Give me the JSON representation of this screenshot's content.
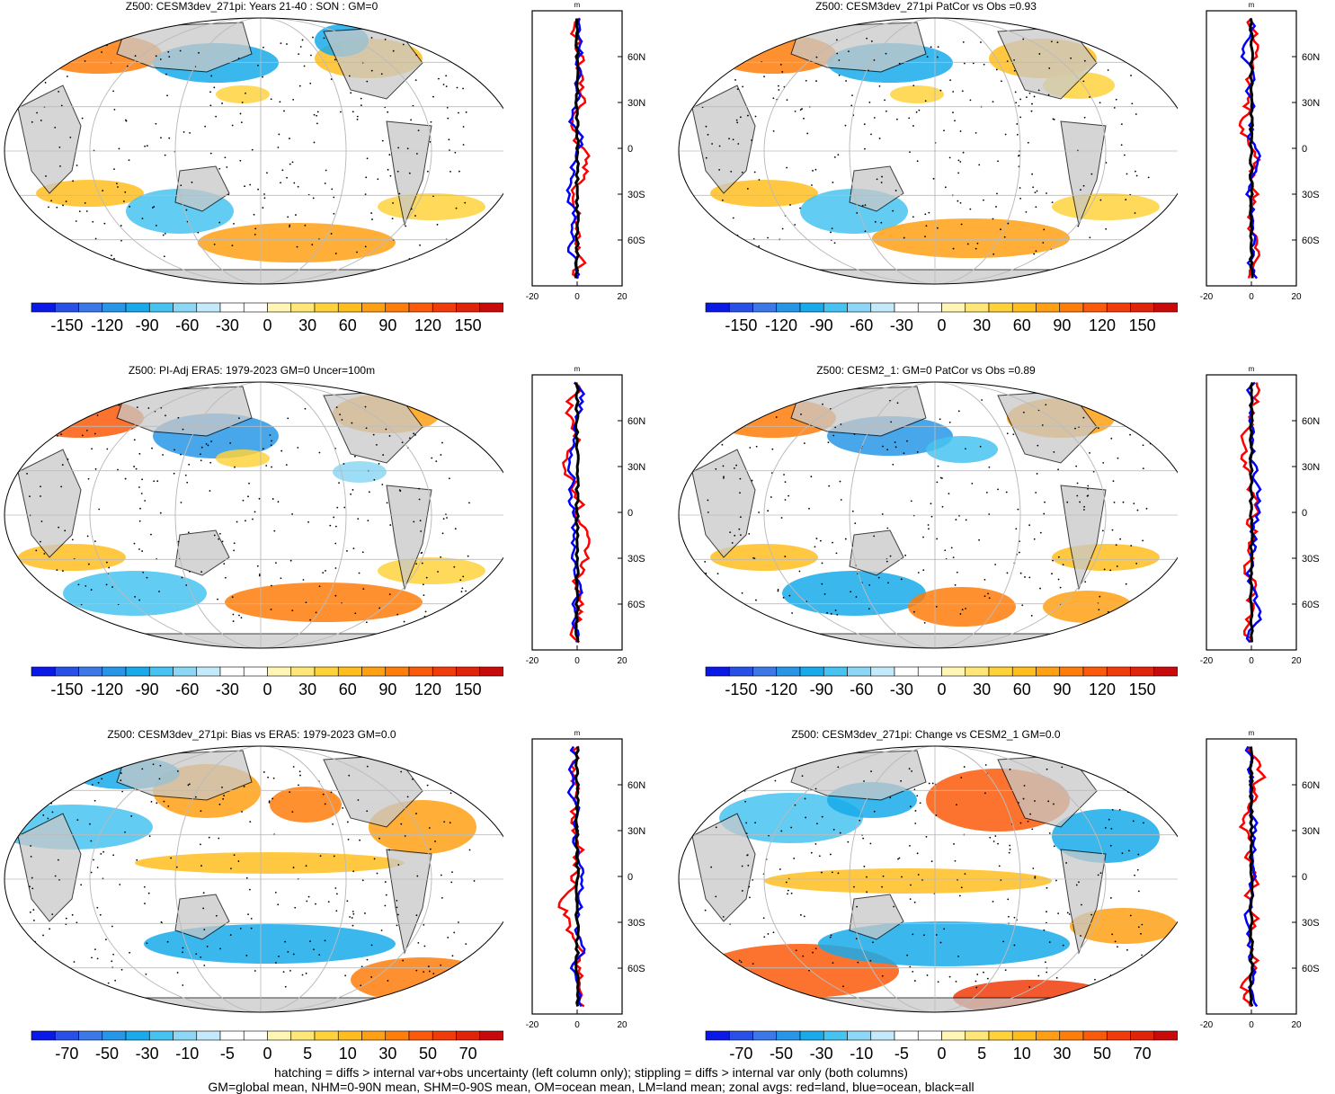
{
  "chart_data": [
    {
      "type": "heatmap",
      "title": "Z500: CESM3dev_271pi: Years 21-40 : SON : GM=0",
      "colorbar": {
        "ticks": [
          "-150",
          "-120",
          "-90",
          "-60",
          "-30",
          "0",
          "30",
          "60",
          "90",
          "120",
          "150"
        ]
      },
      "profile": {
        "unit": "m",
        "xlim": [
          -20,
          20
        ],
        "x_ticks": [
          "-20",
          "0",
          "20"
        ],
        "lat_labels": [
          "60N",
          "30N",
          "0",
          "30S",
          "60S"
        ],
        "series": [
          {
            "name": "land",
            "color": "#ff0000"
          },
          {
            "name": "ocean",
            "color": "#0000ff"
          },
          {
            "name": "all",
            "color": "#000000"
          }
        ]
      }
    },
    {
      "type": "heatmap",
      "title": "Z500: CESM3dev_271pi PatCor vs Obs =0.93",
      "colorbar": {
        "ticks": [
          "-150",
          "-120",
          "-90",
          "-60",
          "-30",
          "0",
          "30",
          "60",
          "90",
          "120",
          "150"
        ]
      },
      "profile": {
        "unit": "m",
        "xlim": [
          -20,
          20
        ],
        "x_ticks": [
          "-20",
          "0",
          "20"
        ],
        "lat_labels": [
          "60N",
          "30N",
          "0",
          "30S",
          "60S"
        ],
        "series": [
          {
            "name": "land",
            "color": "#ff0000"
          },
          {
            "name": "ocean",
            "color": "#0000ff"
          },
          {
            "name": "all",
            "color": "#000000"
          }
        ]
      }
    },
    {
      "type": "heatmap",
      "title": "Z500: PI-Adj ERA5: 1979-2023 GM=0 Uncer=100m",
      "colorbar": {
        "ticks": [
          "-150",
          "-120",
          "-90",
          "-60",
          "-30",
          "0",
          "30",
          "60",
          "90",
          "120",
          "150"
        ]
      },
      "profile": {
        "unit": "m",
        "xlim": [
          -20,
          20
        ],
        "x_ticks": [
          "-20",
          "0",
          "20"
        ],
        "lat_labels": [
          "60N",
          "30N",
          "0",
          "30S",
          "60S"
        ],
        "series": [
          {
            "name": "land",
            "color": "#ff0000"
          },
          {
            "name": "ocean",
            "color": "#0000ff"
          },
          {
            "name": "all",
            "color": "#000000"
          }
        ]
      }
    },
    {
      "type": "heatmap",
      "title": "Z500: CESM2_1: GM=0 PatCor vs Obs =0.89",
      "colorbar": {
        "ticks": [
          "-150",
          "-120",
          "-90",
          "-60",
          "-30",
          "0",
          "30",
          "60",
          "90",
          "120",
          "150"
        ]
      },
      "profile": {
        "unit": "m",
        "xlim": [
          -20,
          20
        ],
        "x_ticks": [
          "-20",
          "0",
          "20"
        ],
        "lat_labels": [
          "60N",
          "30N",
          "0",
          "30S",
          "60S"
        ],
        "series": [
          {
            "name": "land",
            "color": "#ff0000"
          },
          {
            "name": "ocean",
            "color": "#0000ff"
          },
          {
            "name": "all",
            "color": "#000000"
          }
        ]
      }
    },
    {
      "type": "heatmap",
      "title": "Z500: CESM3dev_271pi: Bias vs ERA5: 1979-2023  GM=0.0",
      "colorbar": {
        "ticks": [
          "-70",
          "-50",
          "-30",
          "-10",
          "-5",
          "0",
          "5",
          "10",
          "30",
          "50",
          "70"
        ]
      },
      "profile": {
        "unit": "m",
        "xlim": [
          -20,
          20
        ],
        "x_ticks": [
          "-20",
          "0",
          "20"
        ],
        "lat_labels": [
          "60N",
          "30N",
          "0",
          "30S",
          "60S"
        ],
        "series": [
          {
            "name": "land",
            "color": "#ff0000"
          },
          {
            "name": "ocean",
            "color": "#0000ff"
          },
          {
            "name": "all",
            "color": "#000000"
          }
        ]
      }
    },
    {
      "type": "heatmap",
      "title": "Z500: CESM3dev_271pi: Change vs CESM2_1 GM=0.0",
      "colorbar": {
        "ticks": [
          "-70",
          "-50",
          "-30",
          "-10",
          "-5",
          "0",
          "5",
          "10",
          "30",
          "50",
          "70"
        ]
      },
      "profile": {
        "unit": "m",
        "xlim": [
          -20,
          20
        ],
        "x_ticks": [
          "-20",
          "0",
          "20"
        ],
        "lat_labels": [
          "60N",
          "30N",
          "0",
          "30S",
          "60S"
        ],
        "series": [
          {
            "name": "land",
            "color": "#ff0000"
          },
          {
            "name": "ocean",
            "color": "#0000ff"
          },
          {
            "name": "all",
            "color": "#000000"
          }
        ]
      }
    }
  ],
  "colorbar_colors": [
    "#0a18e8",
    "#2850e6",
    "#3c78e8",
    "#2896e6",
    "#18aaea",
    "#46c3f0",
    "#8cd7f5",
    "#c3e9fb",
    "#ffffff",
    "#ffffff",
    "#fff5b4",
    "#ffe678",
    "#ffd23c",
    "#ffbe1e",
    "#ffa014",
    "#ff7d0a",
    "#fa5a0a",
    "#f03c0a",
    "#e1230a",
    "#c80a0a"
  ],
  "map_colors": {
    "ocean": "#ffffff",
    "land": "#c8c8c8",
    "coast": "#000000",
    "grid": "#bbbbbb"
  },
  "footnote": {
    "line1": "hatching = diffs > internal var+obs uncertainty (left column only); stippling = diffs > internal var only (both columns)",
    "line2": "GM=global mean, NHM=0-90N mean, SHM=0-90S mean, OM=ocean mean, LM=land mean; zonal avgs: red=land, blue=ocean, black=all"
  }
}
